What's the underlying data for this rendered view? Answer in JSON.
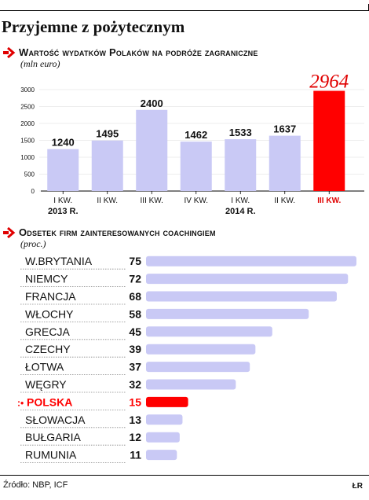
{
  "title": "Przyjemne z pożytecznym",
  "source": "Źródło: NBP, ICF",
  "credit": "ŁR",
  "chart_data": [
    {
      "type": "bar",
      "title": "Wartość wydatków Polaków na podróże zagraniczne",
      "subtitle": "(mln euro)",
      "categories": [
        "I KW.",
        "II KW.",
        "III KW.",
        "IV KW.",
        "I KW.",
        "II KW.",
        "III KW."
      ],
      "year_labels": [
        "2013 R.",
        "",
        "",
        "",
        "2014 R.",
        "",
        ""
      ],
      "values": [
        1240,
        1495,
        2400,
        1462,
        1533,
        1637,
        2964
      ],
      "highlight_index": 6,
      "ylim": [
        0,
        3000
      ],
      "yticks": [
        0,
        500,
        1000,
        1500,
        2000,
        2500,
        3000
      ],
      "colors": {
        "bar": "#c9c9f5",
        "highlight": "#ff0000",
        "highlight_label": "#e00000"
      }
    },
    {
      "type": "bar",
      "orientation": "horizontal",
      "title": "Odsetek firm zainteresowanych coachingiem",
      "subtitle": "(proc.)",
      "categories": [
        "W.BRYTANIA",
        "NIEMCY",
        "FRANCJA",
        "WŁOCHY",
        "GRECJA",
        "CZECHY",
        "ŁOTWA",
        "WĘGRY",
        "POLSKA",
        "SŁOWACJA",
        "BUŁGARIA",
        "RUMUNIA"
      ],
      "values": [
        75,
        72,
        68,
        58,
        45,
        39,
        37,
        32,
        15,
        13,
        12,
        11
      ],
      "highlight_index": 8,
      "colors": {
        "bar": "#c9c9f5",
        "highlight": "#ff0000"
      }
    }
  ]
}
